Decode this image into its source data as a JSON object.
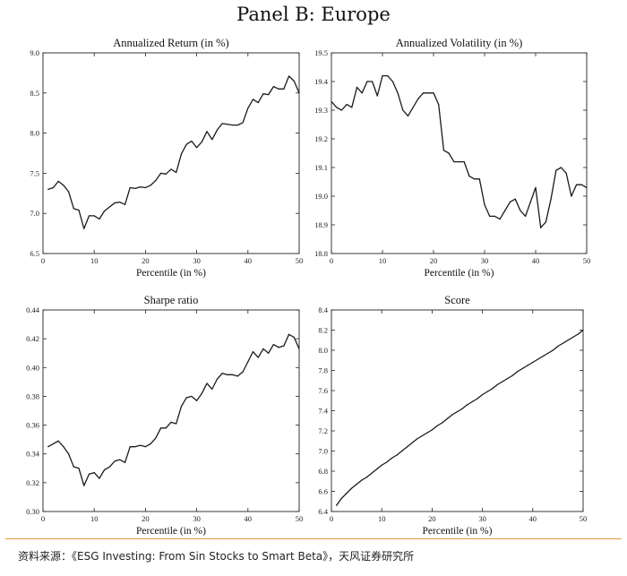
{
  "panel_title": "Panel B: Europe",
  "source": "资料来源：《ESG Investing: From Sin Stocks to Smart Beta》，天风证券研究所",
  "chart_data": [
    {
      "type": "line",
      "title": "Annualized Return (in %)",
      "xlabel": "Percentile (in %)",
      "ylabel": "",
      "xlim": [
        0,
        50
      ],
      "ylim": [
        6.5,
        9.0
      ],
      "xticks": [
        "0",
        "10",
        "20",
        "30",
        "40",
        "50"
      ],
      "yticks": [
        "6.5",
        "7.0",
        "7.5",
        "8.0",
        "8.5",
        "9.0"
      ],
      "x": [
        1,
        2,
        3,
        4,
        5,
        6,
        7,
        8,
        9,
        10,
        11,
        12,
        13,
        14,
        15,
        16,
        17,
        18,
        19,
        20,
        21,
        22,
        23,
        24,
        25,
        26,
        27,
        28,
        29,
        30,
        31,
        32,
        33,
        34,
        35,
        36,
        37,
        38,
        39,
        40,
        41,
        42,
        43,
        44,
        45,
        46,
        47,
        48,
        49,
        50
      ],
      "series": [
        {
          "values": [
            7.3,
            7.32,
            7.4,
            7.35,
            7.27,
            7.06,
            7.04,
            6.81,
            6.97,
            6.97,
            6.93,
            7.03,
            7.08,
            7.13,
            7.14,
            7.11,
            7.32,
            7.31,
            7.33,
            7.32,
            7.35,
            7.41,
            7.5,
            7.49,
            7.55,
            7.51,
            7.74,
            7.86,
            7.9,
            7.82,
            7.89,
            8.02,
            7.92,
            8.04,
            8.12,
            8.11,
            8.1,
            8.1,
            8.13,
            8.31,
            8.42,
            8.38,
            8.49,
            8.48,
            8.58,
            8.55,
            8.55,
            8.71,
            8.65,
            8.5
          ]
        }
      ]
    },
    {
      "type": "line",
      "title": "Annualized Volatility (in %)",
      "xlabel": "Percentile (in %)",
      "ylabel": "",
      "xlim": [
        0,
        50
      ],
      "ylim": [
        18.8,
        19.5
      ],
      "xticks": [
        "0",
        "10",
        "20",
        "30",
        "40",
        "50"
      ],
      "yticks": [
        "18.8",
        "18.9",
        "19.0",
        "19.1",
        "19.2",
        "19.3",
        "19.4",
        "19.5"
      ],
      "x": [
        0,
        1,
        2,
        3,
        4,
        5,
        6,
        7,
        8,
        9,
        10,
        11,
        12,
        13,
        14,
        15,
        16,
        17,
        18,
        19,
        20,
        21,
        22,
        23,
        24,
        25,
        26,
        27,
        28,
        29,
        30,
        31,
        32,
        33,
        34,
        35,
        36,
        37,
        38,
        39,
        40,
        41,
        42,
        43,
        44,
        45,
        46,
        47,
        48,
        49,
        50
      ],
      "series": [
        {
          "values": [
            19.33,
            19.31,
            19.3,
            19.32,
            19.31,
            19.38,
            19.36,
            19.4,
            19.4,
            19.35,
            19.42,
            19.42,
            19.4,
            19.36,
            19.3,
            19.28,
            19.31,
            19.34,
            19.36,
            19.36,
            19.36,
            19.32,
            19.16,
            19.15,
            19.12,
            19.12,
            19.12,
            19.07,
            19.06,
            19.06,
            18.97,
            18.93,
            18.93,
            18.92,
            18.95,
            18.98,
            18.99,
            18.95,
            18.93,
            18.98,
            19.03,
            18.89,
            18.91,
            18.99,
            19.09,
            19.1,
            19.08,
            19.0,
            19.04,
            19.04,
            19.03
          ]
        }
      ]
    },
    {
      "type": "line",
      "title": "Sharpe ratio",
      "xlabel": "Percentile (in %)",
      "ylabel": "",
      "xlim": [
        0,
        50
      ],
      "ylim": [
        0.3,
        0.44
      ],
      "xticks": [
        "0",
        "10",
        "20",
        "30",
        "40",
        "50"
      ],
      "yticks": [
        "0.30",
        "0.32",
        "0.34",
        "0.36",
        "0.38",
        "0.40",
        "0.42",
        "0.44"
      ],
      "x": [
        1,
        2,
        3,
        4,
        5,
        6,
        7,
        8,
        9,
        10,
        11,
        12,
        13,
        14,
        15,
        16,
        17,
        18,
        19,
        20,
        21,
        22,
        23,
        24,
        25,
        26,
        27,
        28,
        29,
        30,
        31,
        32,
        33,
        34,
        35,
        36,
        37,
        38,
        39,
        40,
        41,
        42,
        43,
        44,
        45,
        46,
        47,
        48,
        49,
        50
      ],
      "series": [
        {
          "values": [
            0.345,
            0.347,
            0.349,
            0.345,
            0.34,
            0.331,
            0.33,
            0.318,
            0.326,
            0.327,
            0.323,
            0.329,
            0.331,
            0.335,
            0.336,
            0.334,
            0.345,
            0.345,
            0.346,
            0.345,
            0.347,
            0.351,
            0.358,
            0.358,
            0.362,
            0.361,
            0.373,
            0.379,
            0.38,
            0.377,
            0.382,
            0.389,
            0.385,
            0.392,
            0.396,
            0.395,
            0.395,
            0.394,
            0.397,
            0.404,
            0.411,
            0.407,
            0.413,
            0.41,
            0.416,
            0.414,
            0.415,
            0.423,
            0.421,
            0.413
          ]
        }
      ]
    },
    {
      "type": "line",
      "title": "Score",
      "xlabel": "Percentile (in %)",
      "ylabel": "",
      "xlim": [
        0,
        50
      ],
      "ylim": [
        6.4,
        8.4
      ],
      "xticks": [
        "0",
        "10",
        "20",
        "30",
        "40",
        "50"
      ],
      "yticks": [
        "6.4",
        "6.6",
        "6.8",
        "7.0",
        "7.2",
        "7.4",
        "7.6",
        "7.8",
        "8.0",
        "8.2",
        "8.4"
      ],
      "x": [
        1,
        2,
        3,
        4,
        5,
        6,
        7,
        8,
        9,
        10,
        11,
        12,
        13,
        14,
        15,
        16,
        17,
        18,
        19,
        20,
        21,
        22,
        23,
        24,
        25,
        26,
        27,
        28,
        29,
        30,
        31,
        32,
        33,
        34,
        35,
        36,
        37,
        38,
        39,
        40,
        41,
        42,
        43,
        44,
        45,
        46,
        47,
        48,
        49,
        50
      ],
      "series": [
        {
          "values": [
            6.46,
            6.53,
            6.58,
            6.63,
            6.67,
            6.71,
            6.74,
            6.78,
            6.82,
            6.86,
            6.89,
            6.93,
            6.96,
            7.0,
            7.04,
            7.08,
            7.12,
            7.15,
            7.18,
            7.21,
            7.25,
            7.28,
            7.32,
            7.36,
            7.39,
            7.42,
            7.46,
            7.49,
            7.52,
            7.56,
            7.59,
            7.62,
            7.66,
            7.69,
            7.72,
            7.75,
            7.79,
            7.82,
            7.85,
            7.88,
            7.91,
            7.94,
            7.97,
            8.0,
            8.04,
            8.07,
            8.1,
            8.13,
            8.16,
            8.2
          ]
        }
      ]
    }
  ]
}
